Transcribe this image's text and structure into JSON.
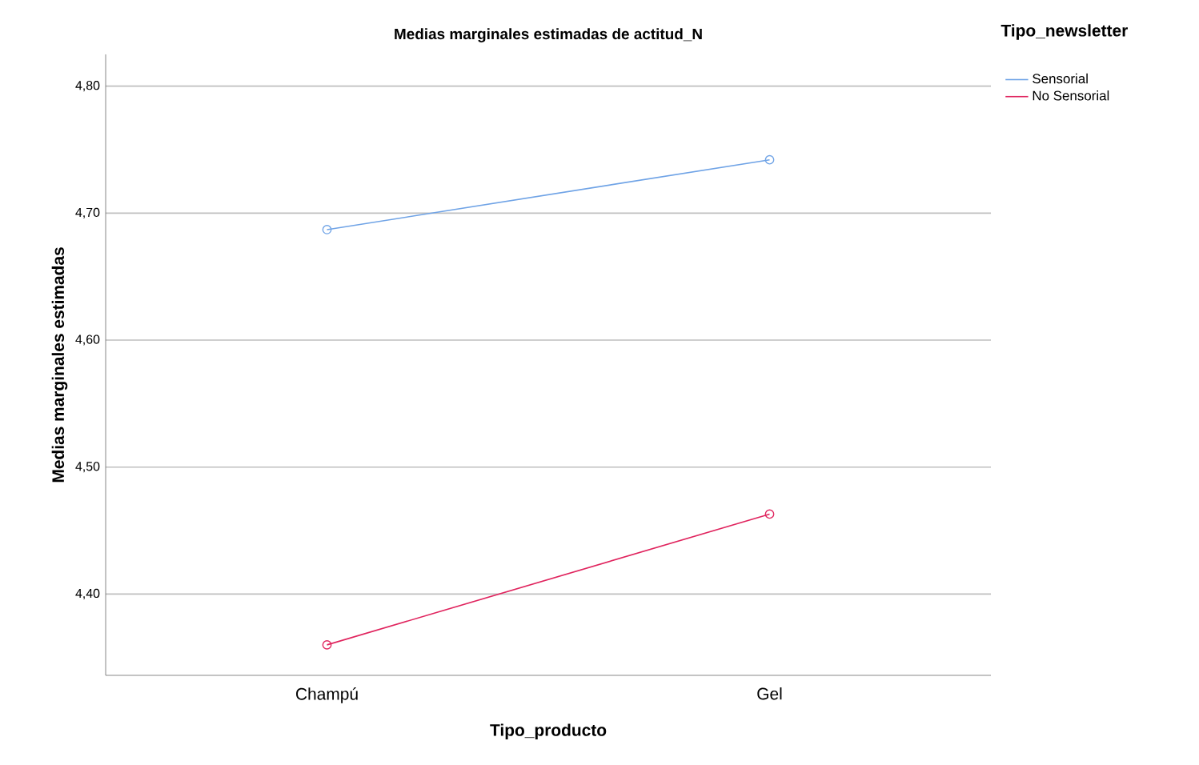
{
  "chart_data": {
    "type": "line",
    "title": "Medias marginales estimadas de actitud_N",
    "xlabel": "Tipo_producto",
    "ylabel": "Medias marginales estimadas",
    "legend_title": "Tipo_newsletter",
    "categories": [
      "Champú",
      "Gel"
    ],
    "series": [
      {
        "name": "Sensorial",
        "color": "#6fa3e6",
        "values": [
          4.687,
          4.742
        ]
      },
      {
        "name": "No Sensorial",
        "color": "#e0245e",
        "values": [
          4.36,
          4.463
        ]
      }
    ],
    "ylim": [
      4.336,
      4.825
    ],
    "yticks": [
      {
        "value": 4.4,
        "label": "4,40"
      },
      {
        "value": 4.5,
        "label": "4,50"
      },
      {
        "value": 4.6,
        "label": "4,60"
      },
      {
        "value": 4.7,
        "label": "4,70"
      },
      {
        "value": 4.8,
        "label": "4,80"
      }
    ],
    "grid": "y",
    "legend": "top right",
    "marker": "circle",
    "line_style": "solid"
  }
}
